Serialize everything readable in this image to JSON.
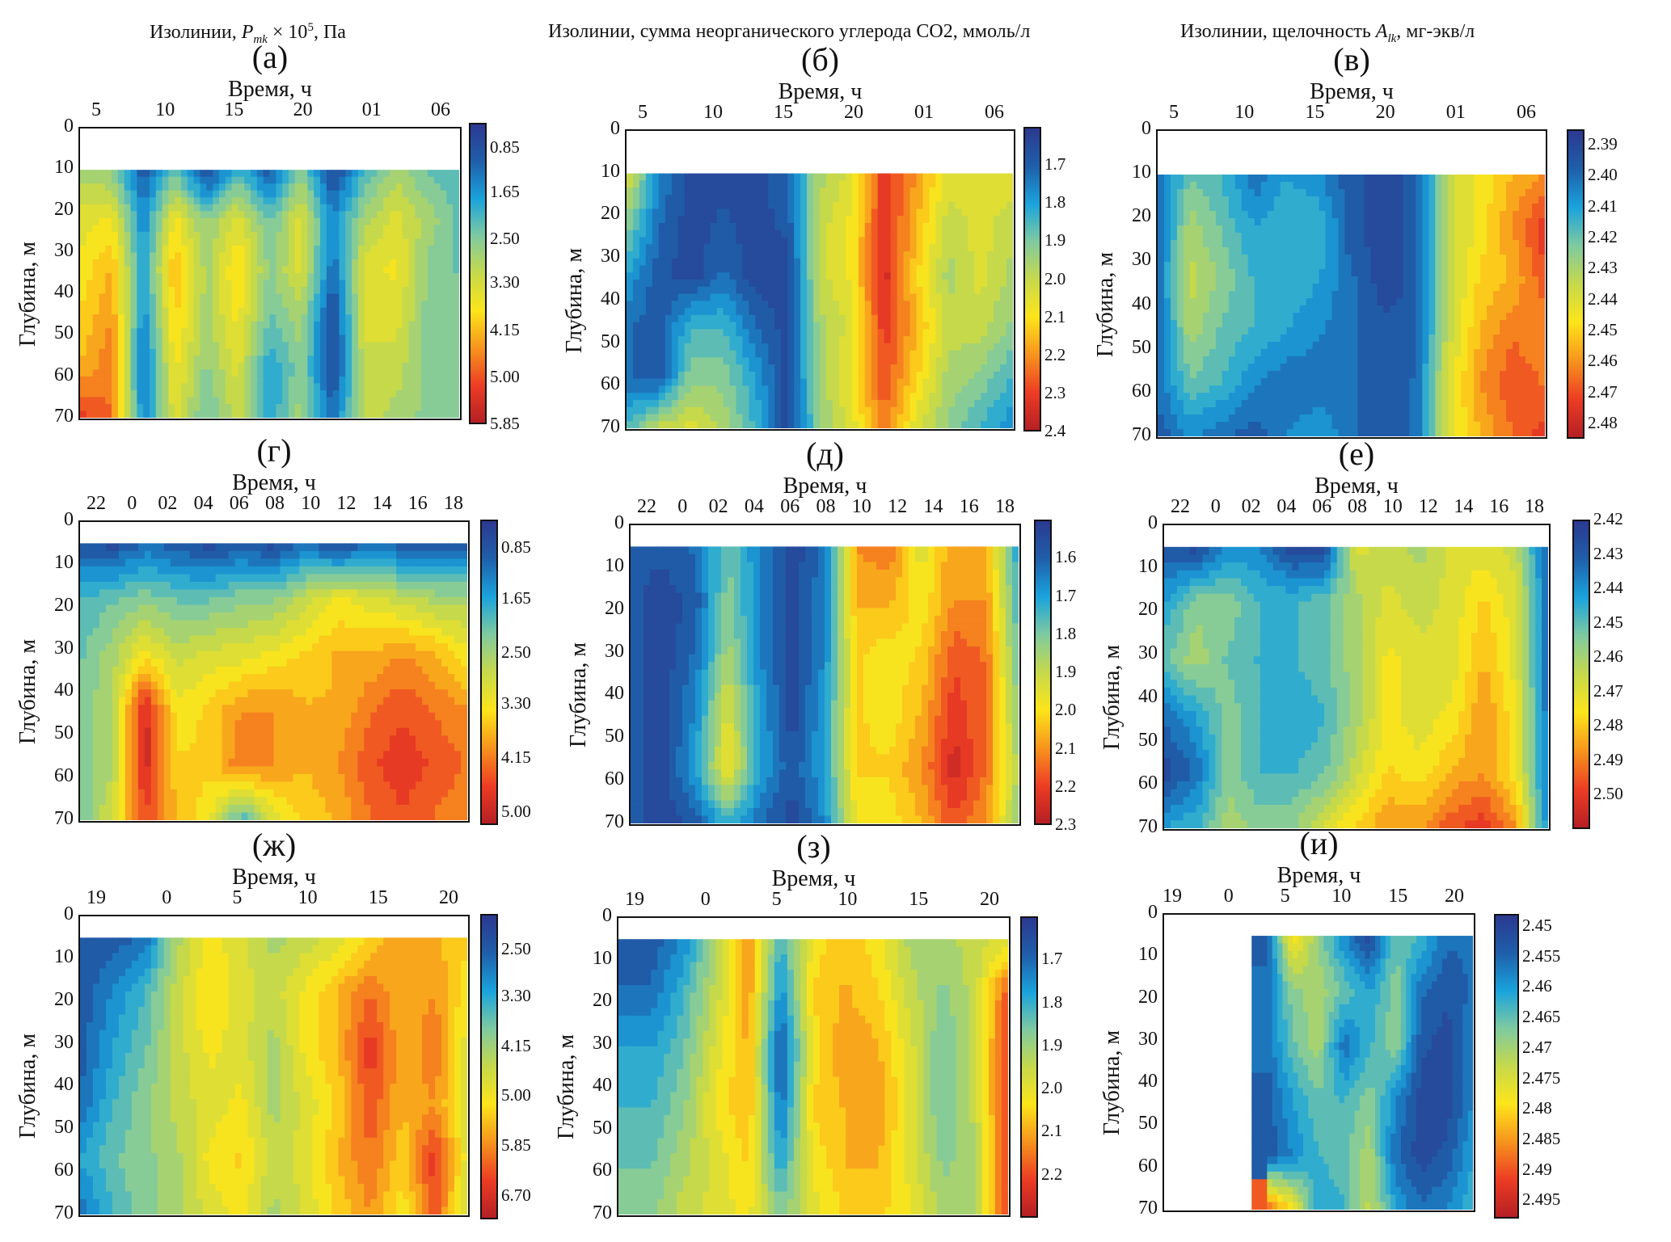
{
  "column_titles": [
    {
      "prefix": "Изолинии, ",
      "var": "P",
      "sub": "mk",
      "mid": " × 10",
      "sup": "5",
      "suffix": ", Па"
    },
    {
      "prefix": "Изолинии, сумма неорганического углерода CO2, ммоль/л",
      "var": "",
      "sub": "",
      "mid": "",
      "sup": "",
      "suffix": ""
    },
    {
      "prefix": "Изолинии, щелочность ",
      "var": "A",
      "sub": "lk",
      "mid": "",
      "sup": "",
      "suffix": ", мг-экв/л"
    }
  ],
  "colormap": [
    "#2b3990",
    "#1f5faa",
    "#1aa3dc",
    "#7fcaa0",
    "#c6d94b",
    "#fde51a",
    "#f7941d",
    "#ed3d24",
    "#b51f24"
  ],
  "chart_data": [
    {
      "id": "a",
      "panel_label": "(а)",
      "type": "heatmap",
      "xlabel": "Время, ч",
      "ylabel": "Глубина, м",
      "xticks": [
        "5",
        "10",
        "15",
        "20",
        "01",
        "06"
      ],
      "yticks": [
        "0",
        "10",
        "20",
        "30",
        "40",
        "50",
        "60",
        "70"
      ],
      "ylim": [
        0,
        70
      ],
      "data_top_depth": 10,
      "colorbar": {
        "ticks": [
          "0.85",
          "1.65",
          "2.50",
          "3.30",
          "4.15",
          "5.00",
          "5.85"
        ],
        "range": [
          0.4,
          5.85
        ]
      },
      "field": [
        [
          0.45,
          0.4,
          0.1,
          0.35,
          0.05,
          0.3,
          0.1,
          0.4,
          0.05,
          0.3,
          0.45,
          0.35,
          0.3
        ],
        [
          0.55,
          0.6,
          0.2,
          0.6,
          0.4,
          0.55,
          0.35,
          0.55,
          0.2,
          0.45,
          0.55,
          0.45,
          0.35
        ],
        [
          0.6,
          0.7,
          0.25,
          0.7,
          0.45,
          0.65,
          0.4,
          0.55,
          0.15,
          0.55,
          0.6,
          0.4,
          0.35
        ],
        [
          0.65,
          0.75,
          0.2,
          0.65,
          0.45,
          0.6,
          0.35,
          0.45,
          0.05,
          0.55,
          0.55,
          0.4,
          0.4
        ],
        [
          0.7,
          0.8,
          0.15,
          0.6,
          0.4,
          0.55,
          0.25,
          0.4,
          0.05,
          0.5,
          0.5,
          0.4,
          0.4
        ],
        [
          0.9,
          0.8,
          0.2,
          0.55,
          0.35,
          0.5,
          0.25,
          0.45,
          0.15,
          0.5,
          0.45,
          0.4,
          0.4
        ]
      ]
    },
    {
      "id": "b",
      "panel_label": "(б)",
      "type": "heatmap",
      "xlabel": "Время, ч",
      "ylabel": "Глубина, м",
      "xticks": [
        "5",
        "10",
        "15",
        "20",
        "01",
        "06"
      ],
      "yticks": [
        "0",
        "10",
        "20",
        "30",
        "40",
        "50",
        "60",
        "70"
      ],
      "ylim": [
        0,
        70
      ],
      "data_top_depth": 10,
      "colorbar": {
        "ticks": [
          "1.7",
          "1.8",
          "1.9",
          "2.0",
          "2.1",
          "2.2",
          "2.3",
          "2.4"
        ],
        "range": [
          1.6,
          2.4
        ]
      },
      "field": [
        [
          0.55,
          0.2,
          0.05,
          0.05,
          0.05,
          0.15,
          0.45,
          0.55,
          0.9,
          0.75,
          0.55,
          0.55,
          0.55
        ],
        [
          0.4,
          0.15,
          0.05,
          0.1,
          0.05,
          0.1,
          0.5,
          0.6,
          0.9,
          0.7,
          0.5,
          0.55,
          0.5
        ],
        [
          0.25,
          0.1,
          0.05,
          0.15,
          0.05,
          0.05,
          0.5,
          0.6,
          0.95,
          0.65,
          0.45,
          0.55,
          0.45
        ],
        [
          0.15,
          0.1,
          0.3,
          0.3,
          0.15,
          0.05,
          0.45,
          0.55,
          0.9,
          0.7,
          0.5,
          0.5,
          0.4
        ],
        [
          0.15,
          0.1,
          0.4,
          0.4,
          0.25,
          0.05,
          0.45,
          0.6,
          0.85,
          0.65,
          0.45,
          0.4,
          0.3
        ],
        [
          0.3,
          0.5,
          0.55,
          0.45,
          0.3,
          0.05,
          0.4,
          0.55,
          0.8,
          0.55,
          0.4,
          0.3,
          0.2
        ]
      ]
    },
    {
      "id": "c",
      "panel_label": "(в)",
      "type": "heatmap",
      "xlabel": "Время, ч",
      "ylabel": "Глубина, м",
      "xticks": [
        "5",
        "10",
        "15",
        "20",
        "01",
        "06"
      ],
      "yticks": [
        "0",
        "10",
        "20",
        "30",
        "40",
        "50",
        "60",
        "70"
      ],
      "ylim": [
        0,
        70
      ],
      "data_top_depth": 10,
      "colorbar": {
        "ticks": [
          "2.39",
          "2.40",
          "2.41",
          "2.42",
          "2.43",
          "2.44",
          "2.45",
          "2.46",
          "2.47",
          "2.48"
        ],
        "range": [
          2.385,
          2.485
        ]
      },
      "field": [
        [
          0.15,
          0.35,
          0.3,
          0.15,
          0.25,
          0.2,
          0.1,
          0.05,
          0.1,
          0.5,
          0.6,
          0.7,
          0.75
        ],
        [
          0.15,
          0.45,
          0.35,
          0.25,
          0.3,
          0.3,
          0.1,
          0.05,
          0.1,
          0.5,
          0.6,
          0.75,
          0.9
        ],
        [
          0.15,
          0.5,
          0.4,
          0.3,
          0.3,
          0.25,
          0.15,
          0.05,
          0.1,
          0.5,
          0.65,
          0.7,
          0.85
        ],
        [
          0.15,
          0.45,
          0.35,
          0.3,
          0.25,
          0.2,
          0.15,
          0.1,
          0.1,
          0.5,
          0.7,
          0.8,
          0.75
        ],
        [
          0.15,
          0.35,
          0.3,
          0.2,
          0.15,
          0.15,
          0.15,
          0.1,
          0.15,
          0.55,
          0.75,
          0.85,
          0.8
        ],
        [
          0.1,
          0.2,
          0.15,
          0.1,
          0.2,
          0.25,
          0.15,
          0.1,
          0.15,
          0.55,
          0.7,
          0.8,
          0.9
        ]
      ]
    },
    {
      "id": "d",
      "panel_label": "(г)",
      "type": "heatmap",
      "xlabel": "Время, ч",
      "ylabel": "Глубина, м",
      "xticks": [
        "22",
        "0",
        "02",
        "04",
        "06",
        "08",
        "10",
        "12",
        "14",
        "16",
        "18"
      ],
      "yticks": [
        "0",
        "10",
        "20",
        "30",
        "40",
        "50",
        "60",
        "70"
      ],
      "ylim": [
        0,
        70
      ],
      "data_top_depth": 5,
      "colorbar": {
        "ticks": [
          "0.85",
          "1.65",
          "2.50",
          "3.30",
          "4.15",
          "5.00"
        ],
        "range": [
          0.4,
          5.2
        ]
      },
      "field": [
        [
          0.1,
          0.05,
          0.15,
          0.1,
          0.05,
          0.1,
          0.05,
          0.15,
          0.05,
          0.15,
          0.1,
          0.1,
          0.1
        ],
        [
          0.3,
          0.35,
          0.4,
          0.35,
          0.35,
          0.4,
          0.4,
          0.5,
          0.6,
          0.55,
          0.5,
          0.45,
          0.45
        ],
        [
          0.35,
          0.45,
          0.6,
          0.5,
          0.55,
          0.55,
          0.6,
          0.65,
          0.7,
          0.7,
          0.75,
          0.7,
          0.6
        ],
        [
          0.4,
          0.45,
          0.95,
          0.6,
          0.65,
          0.75,
          0.75,
          0.7,
          0.7,
          0.8,
          0.85,
          0.8,
          0.75
        ],
        [
          0.4,
          0.45,
          0.95,
          0.65,
          0.65,
          0.8,
          0.75,
          0.7,
          0.75,
          0.85,
          0.9,
          0.85,
          0.8
        ],
        [
          0.35,
          0.55,
          0.85,
          0.7,
          0.6,
          0.3,
          0.55,
          0.65,
          0.7,
          0.8,
          0.85,
          0.8,
          0.75
        ]
      ]
    },
    {
      "id": "e",
      "panel_label": "(д)",
      "type": "heatmap",
      "xlabel": "Время, ч",
      "ylabel": "Глубина, м",
      "xticks": [
        "22",
        "0",
        "02",
        "04",
        "06",
        "08",
        "10",
        "12",
        "14",
        "16",
        "18"
      ],
      "yticks": [
        "0",
        "10",
        "20",
        "30",
        "40",
        "50",
        "60",
        "70"
      ],
      "ylim": [
        0,
        70
      ],
      "data_top_depth": 5,
      "colorbar": {
        "ticks": [
          "1.6",
          "1.7",
          "1.8",
          "1.9",
          "2.0",
          "2.1",
          "2.2",
          "2.3"
        ],
        "range": [
          1.5,
          2.3
        ]
      },
      "field": [
        [
          0.1,
          0.1,
          0.15,
          0.35,
          0.2,
          0.05,
          0.15,
          0.75,
          0.8,
          0.55,
          0.75,
          0.7,
          0.25
        ],
        [
          0.1,
          0.05,
          0.1,
          0.4,
          0.2,
          0.05,
          0.2,
          0.7,
          0.7,
          0.6,
          0.75,
          0.75,
          0.3
        ],
        [
          0.1,
          0.05,
          0.15,
          0.45,
          0.2,
          0.05,
          0.2,
          0.65,
          0.6,
          0.65,
          0.85,
          0.8,
          0.35
        ],
        [
          0.1,
          0.05,
          0.2,
          0.55,
          0.25,
          0.05,
          0.25,
          0.65,
          0.6,
          0.7,
          0.9,
          0.8,
          0.4
        ],
        [
          0.1,
          0.05,
          0.25,
          0.6,
          0.25,
          0.1,
          0.25,
          0.65,
          0.65,
          0.75,
          0.95,
          0.8,
          0.45
        ],
        [
          0.1,
          0.05,
          0.1,
          0.3,
          0.15,
          0.05,
          0.2,
          0.6,
          0.6,
          0.7,
          0.85,
          0.75,
          0.4
        ]
      ]
    },
    {
      "id": "f",
      "panel_label": "(е)",
      "type": "heatmap",
      "xlabel": "Время, ч",
      "ylabel": "Глубина, м",
      "xticks": [
        "22",
        "0",
        "02",
        "04",
        "06",
        "08",
        "10",
        "12",
        "14",
        "16",
        "18"
      ],
      "yticks": [
        "0",
        "10",
        "20",
        "30",
        "40",
        "50",
        "60",
        "70"
      ],
      "ylim": [
        0,
        70
      ],
      "data_top_depth": 5,
      "colorbar": {
        "ticks": [
          "2.42",
          "2.43",
          "2.44",
          "2.45",
          "2.46",
          "2.47",
          "2.48",
          "2.49",
          "2.50"
        ],
        "range": [
          2.42,
          2.51
        ]
      },
      "field": [
        [
          0.1,
          0.05,
          0.2,
          0.2,
          0.05,
          0.05,
          0.55,
          0.5,
          0.45,
          0.55,
          0.55,
          0.5,
          0.1
        ],
        [
          0.25,
          0.4,
          0.4,
          0.3,
          0.3,
          0.35,
          0.45,
          0.55,
          0.5,
          0.55,
          0.65,
          0.55,
          0.15
        ],
        [
          0.35,
          0.45,
          0.35,
          0.3,
          0.3,
          0.35,
          0.45,
          0.6,
          0.55,
          0.55,
          0.7,
          0.55,
          0.15
        ],
        [
          0.15,
          0.25,
          0.4,
          0.3,
          0.25,
          0.3,
          0.45,
          0.6,
          0.55,
          0.6,
          0.75,
          0.6,
          0.15
        ],
        [
          0.05,
          0.15,
          0.4,
          0.3,
          0.3,
          0.35,
          0.5,
          0.65,
          0.6,
          0.7,
          0.75,
          0.6,
          0.15
        ],
        [
          0.25,
          0.3,
          0.45,
          0.4,
          0.4,
          0.55,
          0.65,
          0.75,
          0.75,
          0.85,
          0.9,
          0.75,
          0.2
        ]
      ]
    },
    {
      "id": "g",
      "panel_label": "(ж)",
      "type": "heatmap",
      "xlabel": "Время, ч",
      "ylabel": "Глубина, м",
      "xticks": [
        "19",
        "0",
        "5",
        "10",
        "15",
        "20"
      ],
      "yticks": [
        "0",
        "10",
        "20",
        "30",
        "40",
        "50",
        "60",
        "70"
      ],
      "ylim": [
        0,
        70
      ],
      "data_top_depth": 5,
      "colorbar": {
        "ticks": [
          "2.50",
          "3.30",
          "4.15",
          "5.00",
          "5.85",
          "6.70"
        ],
        "range": [
          1.9,
          7.1
        ]
      },
      "field": [
        [
          0.1,
          0.1,
          0.15,
          0.45,
          0.6,
          0.55,
          0.45,
          0.5,
          0.55,
          0.65,
          0.75,
          0.7,
          0.65
        ],
        [
          0.1,
          0.2,
          0.3,
          0.5,
          0.65,
          0.55,
          0.5,
          0.6,
          0.7,
          0.8,
          0.7,
          0.75,
          0.6
        ],
        [
          0.1,
          0.25,
          0.35,
          0.5,
          0.6,
          0.55,
          0.45,
          0.6,
          0.7,
          0.9,
          0.7,
          0.8,
          0.55
        ],
        [
          0.15,
          0.3,
          0.4,
          0.5,
          0.55,
          0.6,
          0.45,
          0.55,
          0.65,
          0.85,
          0.7,
          0.75,
          0.55
        ],
        [
          0.25,
          0.35,
          0.4,
          0.45,
          0.6,
          0.65,
          0.5,
          0.55,
          0.7,
          0.8,
          0.65,
          0.9,
          0.55
        ],
        [
          0.15,
          0.3,
          0.4,
          0.45,
          0.55,
          0.6,
          0.45,
          0.55,
          0.65,
          0.75,
          0.6,
          0.85,
          0.5
        ]
      ]
    },
    {
      "id": "h",
      "panel_label": "(з)",
      "type": "heatmap",
      "xlabel": "Время, ч",
      "ylabel": "Глубина, м",
      "xticks": [
        "19",
        "0",
        "5",
        "10",
        "15",
        "20"
      ],
      "yticks": [
        "0",
        "10",
        "20",
        "30",
        "40",
        "50",
        "60",
        "70"
      ],
      "ylim": [
        0,
        70
      ],
      "data_top_depth": 5,
      "colorbar": {
        "ticks": [
          "1.7",
          "1.8",
          "1.9",
          "2.0",
          "2.1",
          "2.2"
        ],
        "range": [
          1.6,
          2.3
        ]
      },
      "field": [
        [
          0.1,
          0.1,
          0.2,
          0.45,
          0.75,
          0.3,
          0.6,
          0.7,
          0.6,
          0.45,
          0.45,
          0.5,
          0.55
        ],
        [
          0.15,
          0.15,
          0.3,
          0.5,
          0.75,
          0.2,
          0.65,
          0.7,
          0.65,
          0.5,
          0.4,
          0.5,
          0.85
        ],
        [
          0.25,
          0.25,
          0.35,
          0.55,
          0.7,
          0.1,
          0.6,
          0.75,
          0.7,
          0.55,
          0.35,
          0.5,
          0.9
        ],
        [
          0.3,
          0.3,
          0.4,
          0.6,
          0.7,
          0.15,
          0.65,
          0.7,
          0.75,
          0.55,
          0.35,
          0.5,
          0.9
        ],
        [
          0.35,
          0.35,
          0.45,
          0.55,
          0.65,
          0.25,
          0.6,
          0.7,
          0.7,
          0.55,
          0.4,
          0.45,
          0.9
        ],
        [
          0.4,
          0.4,
          0.5,
          0.55,
          0.6,
          0.4,
          0.55,
          0.65,
          0.65,
          0.6,
          0.45,
          0.45,
          0.9
        ]
      ]
    },
    {
      "id": "i",
      "panel_label": "(и)",
      "type": "heatmap",
      "xlabel": "Время, ч",
      "ylabel": "Глубина, м",
      "xticks": [
        "19",
        "0",
        "5",
        "10",
        "15",
        "20"
      ],
      "yticks": [
        "0",
        "10",
        "20",
        "30",
        "40",
        "50",
        "60",
        "70"
      ],
      "ylim": [
        0,
        70
      ],
      "data_top_depth": 5,
      "colorbar": {
        "ticks": [
          "2.45",
          "2.455",
          "2.46",
          "2.465",
          "2.47",
          "2.475",
          "2.48",
          "2.485",
          "2.49",
          "2.495"
        ],
        "range": [
          2.448,
          2.498
        ]
      },
      "field": [
        [
          null,
          null,
          null,
          null,
          0.1,
          0.65,
          0.4,
          0.2,
          0.05,
          0.35,
          0.3,
          0.15,
          0.15
        ],
        [
          null,
          null,
          null,
          null,
          0.15,
          0.4,
          0.45,
          0.35,
          0.25,
          0.4,
          0.15,
          0.1,
          0.15
        ],
        [
          null,
          null,
          null,
          null,
          0.15,
          0.35,
          0.45,
          0.15,
          0.3,
          0.4,
          0.1,
          0.05,
          0.2
        ],
        [
          null,
          null,
          null,
          null,
          0.1,
          0.25,
          0.35,
          0.3,
          0.4,
          0.2,
          0.05,
          0.05,
          0.2
        ],
        [
          null,
          null,
          null,
          null,
          0.1,
          0.2,
          0.3,
          0.35,
          0.45,
          0.15,
          0.05,
          0.1,
          0.25
        ],
        [
          null,
          null,
          null,
          null,
          0.85,
          0.6,
          0.25,
          0.3,
          0.5,
          0.25,
          0.15,
          0.2,
          0.3
        ]
      ]
    }
  ]
}
